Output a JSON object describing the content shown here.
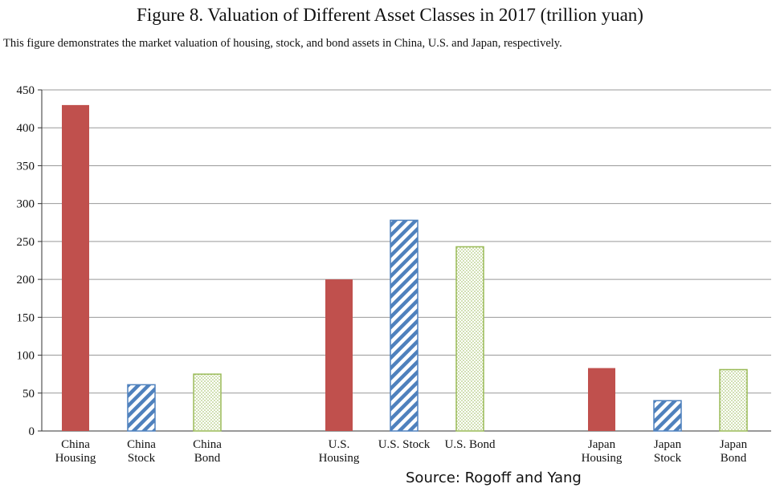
{
  "chart_data": {
    "type": "bar",
    "title": "Figure 8. Valuation of Different Asset Classes in 2017 (trillion yuan)",
    "subtitle": "This figure demonstrates the market valuation of housing, stock, and bond assets in China, U.S. and Japan, respectively.",
    "source": "Source: Rogoff and Yang",
    "xlabel": "",
    "ylabel": "",
    "ylim": [
      0,
      450
    ],
    "yticks": [
      0,
      50,
      100,
      150,
      200,
      250,
      300,
      350,
      400,
      450
    ],
    "grid": true,
    "categories": [
      {
        "label": [
          "China",
          "Housing"
        ],
        "value": 430,
        "asset": "housing"
      },
      {
        "label": [
          "China",
          "Stock"
        ],
        "value": 61,
        "asset": "stock"
      },
      {
        "label": [
          "China",
          "Bond"
        ],
        "value": 75,
        "asset": "bond"
      },
      {
        "label": [
          "U.S.",
          "Housing"
        ],
        "value": 200,
        "asset": "housing"
      },
      {
        "label": [
          "U.S. Stock"
        ],
        "value": 278,
        "asset": "stock"
      },
      {
        "label": [
          "U.S. Bond"
        ],
        "value": 243,
        "asset": "bond"
      },
      {
        "label": [
          "Japan",
          "Housing"
        ],
        "value": 83,
        "asset": "housing"
      },
      {
        "label": [
          "Japan",
          "Stock"
        ],
        "value": 40,
        "asset": "stock"
      },
      {
        "label": [
          "Japan",
          "Bond"
        ],
        "value": 81,
        "asset": "bond"
      }
    ],
    "colors": {
      "housing": "#c0504d",
      "stock": "#4f81bd",
      "bond": "#9bbb59",
      "grid": "#999999"
    }
  }
}
